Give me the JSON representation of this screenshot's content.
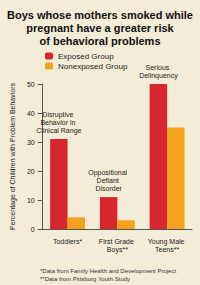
{
  "chart_data": {
    "type": "bar",
    "title": "Boys whose mothers smoked while pregnant have a greater risk of behavioral problems",
    "y_label": "Percentage of Children with Problem Behaviors",
    "categories": [
      "Toddlers*",
      "First Grade Boys**",
      "Young Male Teens**"
    ],
    "series": [
      {
        "name": "Exposed Group",
        "color": "#d8262e",
        "values": [
          31,
          11,
          50
        ]
      },
      {
        "name": "Nonexposed Group",
        "color": "#f5a21c",
        "values": [
          4,
          3,
          35
        ]
      }
    ],
    "annotations": [
      "Disruptive Behavior in Clinical Range",
      "Oppositional Defiant Disorder",
      "Serious Delinquency"
    ],
    "footnotes": [
      "*Data from Family Health and Development Project",
      "**Data from Pittsburg Youth Study"
    ],
    "ylim": [
      0,
      50
    ],
    "yticks": [
      0,
      10,
      20,
      30,
      40,
      50
    ],
    "grid": false,
    "legend": "upper left",
    "data_labels": false
  }
}
